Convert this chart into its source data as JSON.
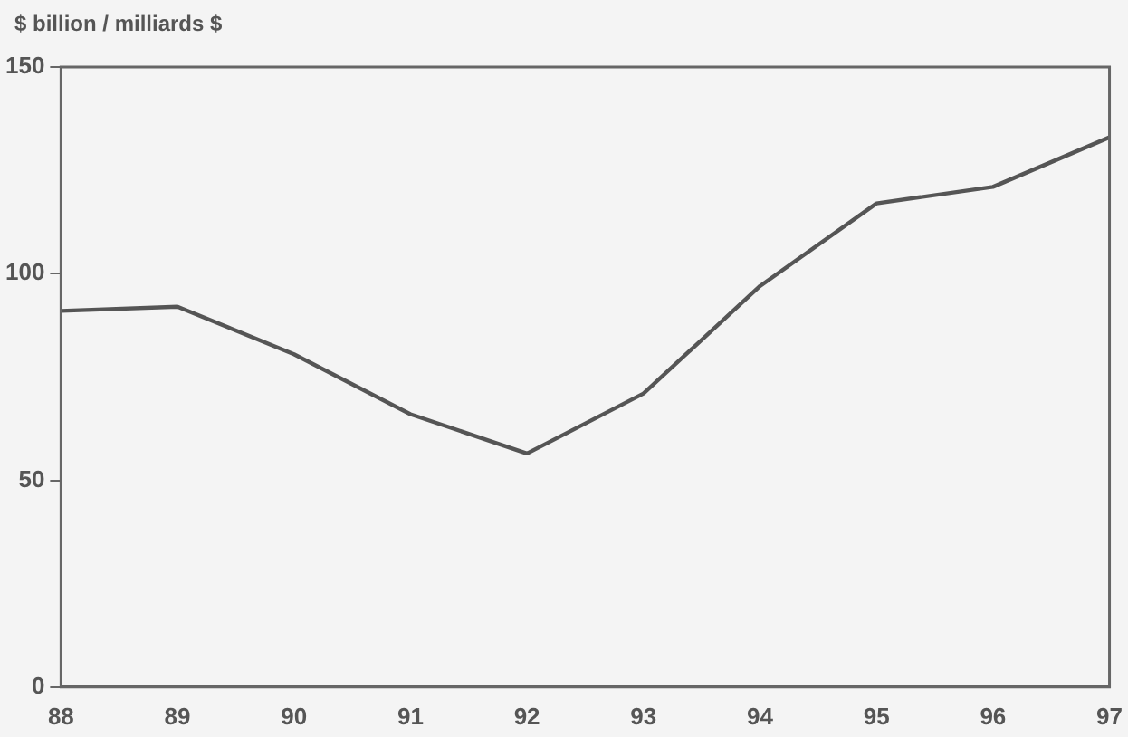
{
  "chart_data": {
    "type": "line",
    "ylabel": "$ billion / milliards $",
    "categories": [
      "88",
      "89",
      "90",
      "91",
      "92",
      "93",
      "94",
      "95",
      "96",
      "97"
    ],
    "series": [
      {
        "color": "#555555",
        "values": [
          91,
          92,
          80.5,
          66,
          56.5,
          71,
          97,
          117,
          121,
          133
        ]
      }
    ],
    "ylim": [
      0,
      150
    ],
    "yticks": [
      0,
      50,
      100,
      150
    ],
    "grid": false,
    "legend": false,
    "marker": "none",
    "line_style": "solid"
  }
}
